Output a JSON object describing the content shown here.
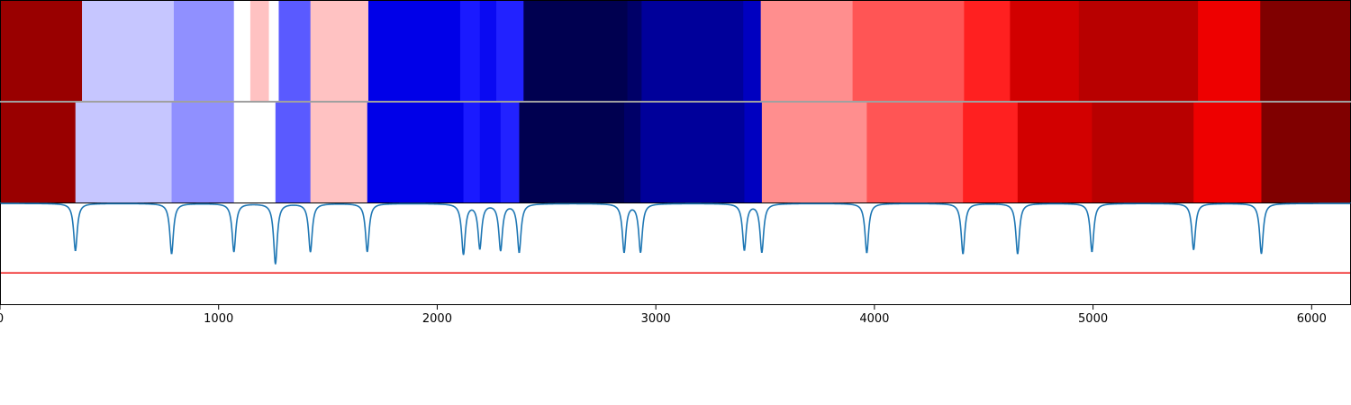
{
  "chart_data": [
    {
      "type": "heatmap",
      "title": "",
      "xlabel": "",
      "ylabel": "",
      "xlim": [
        0,
        6180
      ],
      "segments": [
        {
          "start": 0,
          "end": 375,
          "color": "#990000"
        },
        {
          "start": 375,
          "end": 795,
          "color": "#c6c6ff"
        },
        {
          "start": 795,
          "end": 1070,
          "color": "#9090ff"
        },
        {
          "start": 1070,
          "end": 1145,
          "color": "#ffffff"
        },
        {
          "start": 1145,
          "end": 1230,
          "color": "#ffc2c2"
        },
        {
          "start": 1230,
          "end": 1275,
          "color": "#ffffff"
        },
        {
          "start": 1275,
          "end": 1420,
          "color": "#5a5aff"
        },
        {
          "start": 1420,
          "end": 1685,
          "color": "#ffc2c2"
        },
        {
          "start": 1685,
          "end": 2105,
          "color": "#0000e8"
        },
        {
          "start": 2105,
          "end": 2195,
          "color": "#1a1aff"
        },
        {
          "start": 2195,
          "end": 2270,
          "color": "#0a0af2"
        },
        {
          "start": 2270,
          "end": 2395,
          "color": "#2222ff"
        },
        {
          "start": 2395,
          "end": 2870,
          "color": "#000050"
        },
        {
          "start": 2870,
          "end": 2935,
          "color": "#000068"
        },
        {
          "start": 2935,
          "end": 3400,
          "color": "#00009a"
        },
        {
          "start": 3400,
          "end": 3480,
          "color": "#0000c0"
        },
        {
          "start": 3480,
          "end": 3900,
          "color": "#ff8e8e"
        },
        {
          "start": 3900,
          "end": 4410,
          "color": "#ff5555"
        },
        {
          "start": 4410,
          "end": 4620,
          "color": "#ff2020"
        },
        {
          "start": 4620,
          "end": 4935,
          "color": "#d20000"
        },
        {
          "start": 4935,
          "end": 5480,
          "color": "#b80000"
        },
        {
          "start": 5480,
          "end": 5765,
          "color": "#ee0000"
        },
        {
          "start": 5765,
          "end": 6180,
          "color": "#800000"
        }
      ]
    },
    {
      "type": "heatmap",
      "title": "",
      "xlabel": "",
      "ylabel": "",
      "xlim": [
        0,
        6180
      ],
      "segments": [
        {
          "start": 0,
          "end": 345,
          "color": "#990000"
        },
        {
          "start": 345,
          "end": 785,
          "color": "#c6c6ff"
        },
        {
          "start": 785,
          "end": 1070,
          "color": "#9090ff"
        },
        {
          "start": 1070,
          "end": 1260,
          "color": "#ffffff"
        },
        {
          "start": 1260,
          "end": 1420,
          "color": "#5a5aff"
        },
        {
          "start": 1420,
          "end": 1680,
          "color": "#ffc2c2"
        },
        {
          "start": 1680,
          "end": 2120,
          "color": "#0000e8"
        },
        {
          "start": 2120,
          "end": 2195,
          "color": "#1a1aff"
        },
        {
          "start": 2195,
          "end": 2290,
          "color": "#0a0af2"
        },
        {
          "start": 2290,
          "end": 2375,
          "color": "#2222ff"
        },
        {
          "start": 2375,
          "end": 2855,
          "color": "#000050"
        },
        {
          "start": 2855,
          "end": 2930,
          "color": "#000068"
        },
        {
          "start": 2930,
          "end": 3405,
          "color": "#00009a"
        },
        {
          "start": 3405,
          "end": 3485,
          "color": "#0000c0"
        },
        {
          "start": 3485,
          "end": 3965,
          "color": "#ff8e8e"
        },
        {
          "start": 3965,
          "end": 4405,
          "color": "#ff5555"
        },
        {
          "start": 4405,
          "end": 4655,
          "color": "#ff2020"
        },
        {
          "start": 4655,
          "end": 4995,
          "color": "#d20000"
        },
        {
          "start": 4995,
          "end": 5460,
          "color": "#b80000"
        },
        {
          "start": 5460,
          "end": 5770,
          "color": "#ee0000"
        },
        {
          "start": 5770,
          "end": 6180,
          "color": "#800000"
        }
      ]
    },
    {
      "type": "line",
      "title": "",
      "xlabel": "",
      "ylabel": "",
      "xlim": [
        0,
        6180
      ],
      "ylim": [
        -1.0,
        0.0
      ],
      "baseline": 0.0,
      "dip_width": 10,
      "dips": [
        {
          "x": 345,
          "depth": 0.47
        },
        {
          "x": 785,
          "depth": 0.5
        },
        {
          "x": 1070,
          "depth": 0.48
        },
        {
          "x": 1260,
          "depth": 0.6
        },
        {
          "x": 1420,
          "depth": 0.48
        },
        {
          "x": 1680,
          "depth": 0.48
        },
        {
          "x": 2120,
          "depth": 0.5
        },
        {
          "x": 2195,
          "depth": 0.44
        },
        {
          "x": 2290,
          "depth": 0.46
        },
        {
          "x": 2375,
          "depth": 0.48
        },
        {
          "x": 2855,
          "depth": 0.48
        },
        {
          "x": 2930,
          "depth": 0.48
        },
        {
          "x": 3405,
          "depth": 0.46
        },
        {
          "x": 3485,
          "depth": 0.48
        },
        {
          "x": 3965,
          "depth": 0.49
        },
        {
          "x": 4405,
          "depth": 0.5
        },
        {
          "x": 4655,
          "depth": 0.5
        },
        {
          "x": 4995,
          "depth": 0.48
        },
        {
          "x": 5460,
          "depth": 0.46
        },
        {
          "x": 5770,
          "depth": 0.5
        }
      ],
      "hline": {
        "y": -0.69,
        "color": "#ee1111"
      },
      "line_color": "#1f77b4",
      "xticks": [
        0,
        1000,
        2000,
        3000,
        4000,
        5000,
        6000
      ],
      "xtick_labels": [
        "0",
        "1000",
        "2000",
        "3000",
        "4000",
        "5000",
        "6000"
      ]
    }
  ]
}
